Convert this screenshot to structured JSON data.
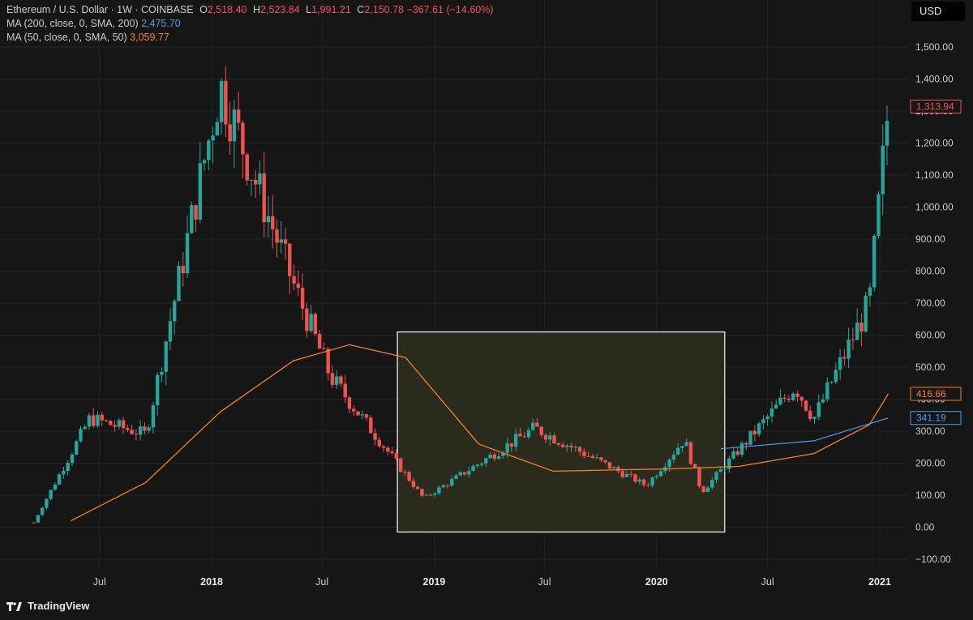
{
  "header": {
    "symbol": "Ethereum / U.S. Dollar · 1W · COINBASE",
    "o_key": "O",
    "o": "2,518.40",
    "h_key": "H",
    "h": "2,523.84",
    "l_key": "L",
    "l": "1,991.21",
    "c_key": "C",
    "c": "2,150.78",
    "change": "−367.61 (−14.60%)",
    "ma200_label": "MA (200, close, 0, SMA, 200)",
    "ma200_value": "2,475.70",
    "ma50_label": "MA (50, close, 0, SMA, 50)",
    "ma50_value": "3,059.77"
  },
  "currency_button": "USD",
  "brand": "TradingView",
  "colors": {
    "up": "#26a69a",
    "down": "#ef5350",
    "ma50": "#f0822c",
    "ma200": "#4c9be8",
    "highlight_fill": "#2c2c1e",
    "highlight_border": "#e8e8e8"
  },
  "chart_data": {
    "type": "candlestick",
    "x_tick_labels": [
      "Jul",
      "2018",
      "Jul",
      "2019",
      "Jul",
      "2020",
      "Jul",
      "2021"
    ],
    "y_ticks": [
      -100,
      0,
      100,
      200,
      300,
      400,
      500,
      600,
      700,
      800,
      900,
      1000,
      1100,
      1200,
      1300,
      1400,
      1500
    ],
    "y_tick_labels": [
      "−100.00",
      "0.00",
      "100.00",
      "200.00",
      "300.00",
      "400.00",
      "500.00",
      "600.00",
      "700.00",
      "800.00",
      "900.00",
      "1,000.00",
      "1,100.00",
      "1,200.00",
      "1,300.00",
      "1,400.00",
      "1,500.00"
    ],
    "ylim": [
      -100,
      1500
    ],
    "price_labels": [
      {
        "value": 1313.94,
        "text": "1,313.94",
        "color": "#ef5350"
      },
      {
        "value": 416.66,
        "text": "416.66",
        "color": "#f0822c"
      },
      {
        "value": 341.19,
        "text": "341.19",
        "color": "#4c9be8"
      }
    ],
    "highlight_box": {
      "x_from": "2018-11",
      "x_to": "2020-04",
      "y_from": -15,
      "y_to": 610
    },
    "key_points": [
      {
        "x": "2017-03",
        "price": 15
      },
      {
        "x": "2017-06",
        "price": 340
      },
      {
        "x": "2017-09",
        "price": 290
      },
      {
        "x": "2018-01",
        "price": 1380
      },
      {
        "x": "2018-05",
        "price": 760
      },
      {
        "x": "2018-07",
        "price": 470
      },
      {
        "x": "2018-12",
        "price": 90
      },
      {
        "x": "2019-06",
        "price": 310
      },
      {
        "x": "2019-12",
        "price": 130
      },
      {
        "x": "2020-02",
        "price": 275
      },
      {
        "x": "2020-03",
        "price": 110
      },
      {
        "x": "2020-08",
        "price": 440
      },
      {
        "x": "2020-09",
        "price": 340
      },
      {
        "x": "2020-12",
        "price": 700
      },
      {
        "x": "2021-01",
        "price": 1313.94
      }
    ],
    "ma50_path": [
      {
        "x": "2017-05",
        "price": 20
      },
      {
        "x": "2017-09",
        "price": 140
      },
      {
        "x": "2018-01",
        "price": 360
      },
      {
        "x": "2018-05",
        "price": 520
      },
      {
        "x": "2018-08",
        "price": 570
      },
      {
        "x": "2018-11",
        "price": 530
      },
      {
        "x": "2019-03",
        "price": 260
      },
      {
        "x": "2019-07",
        "price": 175
      },
      {
        "x": "2020-01",
        "price": 182
      },
      {
        "x": "2020-05",
        "price": 190
      },
      {
        "x": "2020-09",
        "price": 230
      },
      {
        "x": "2020-12",
        "price": 320
      },
      {
        "x": "2021-01",
        "price": 416.66
      }
    ],
    "ma200_path": [
      {
        "x": "2020-04",
        "price": 245
      },
      {
        "x": "2020-09",
        "price": 270
      },
      {
        "x": "2021-01",
        "price": 341.19
      }
    ]
  }
}
